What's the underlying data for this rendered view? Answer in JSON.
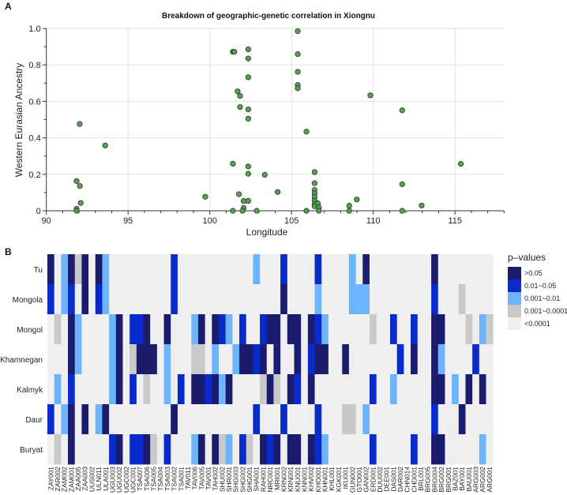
{
  "chart_data": [
    {
      "panel": "A",
      "type": "scatter",
      "title": "Breakdown of geographic-genetic correlation in Xiongnu",
      "xlabel": "Longitude",
      "ylabel": "Western Eurasian Ancestry",
      "xlim": [
        90,
        118
      ],
      "ylim": [
        0,
        1
      ],
      "xticks": [
        90,
        95,
        100,
        105,
        110,
        115
      ],
      "yticks": [
        0,
        0.2,
        0.4,
        0.6,
        0.8,
        1.0
      ],
      "ytick_labels": [
        "0",
        "0.2",
        "0.4",
        "0.6",
        "0.8",
        "1.0"
      ],
      "grid": true,
      "point_color": "#5a9e55",
      "points": [
        [
          92.04,
          0.476
        ],
        [
          93.6,
          0.358
        ],
        [
          91.85,
          0.163
        ],
        [
          92.05,
          0.136
        ],
        [
          92.1,
          0.043
        ],
        [
          91.85,
          0.011
        ],
        [
          91.85,
          0.0
        ],
        [
          99.72,
          0.077
        ],
        [
          101.41,
          0.872
        ],
        [
          101.5,
          0.872
        ],
        [
          102.35,
          0.885
        ],
        [
          102.35,
          0.835
        ],
        [
          102.35,
          0.732
        ],
        [
          101.7,
          0.655
        ],
        [
          101.85,
          0.63
        ],
        [
          101.85,
          0.569
        ],
        [
          102.35,
          0.556
        ],
        [
          102.35,
          0.505
        ],
        [
          101.41,
          0.258
        ],
        [
          102.35,
          0.243
        ],
        [
          102.35,
          0.203
        ],
        [
          103.36,
          0.197
        ],
        [
          104.15,
          0.103
        ],
        [
          101.78,
          0.091
        ],
        [
          102.07,
          0.054
        ],
        [
          102.35,
          0.054
        ],
        [
          102.07,
          0.015
        ],
        [
          102.0,
          0.0
        ],
        [
          101.41,
          0.0
        ],
        [
          102.87,
          0.0
        ],
        [
          105.38,
          0.985
        ],
        [
          105.38,
          0.859
        ],
        [
          105.38,
          0.762
        ],
        [
          105.38,
          0.69
        ],
        [
          105.38,
          0.672
        ],
        [
          105.91,
          0.434
        ],
        [
          109.82,
          0.633
        ],
        [
          111.77,
          0.551
        ],
        [
          115.36,
          0.257
        ],
        [
          111.77,
          0.146
        ],
        [
          111.77,
          0.0
        ],
        [
          112.96,
          0.029
        ],
        [
          108.99,
          0.062
        ],
        [
          108.53,
          0.028
        ],
        [
          108.53,
          0.0
        ],
        [
          105.91,
          0.0
        ],
        [
          106.41,
          0.212
        ],
        [
          106.41,
          0.151
        ],
        [
          106.41,
          0.114
        ],
        [
          106.41,
          0.095
        ],
        [
          106.41,
          0.076
        ],
        [
          106.41,
          0.056
        ],
        [
          106.41,
          0.037
        ],
        [
          106.41,
          0.025
        ],
        [
          106.61,
          0.041
        ],
        [
          106.67,
          0.018
        ],
        [
          106.67,
          0.0
        ]
      ]
    },
    {
      "panel": "B",
      "type": "heatmap",
      "rows": [
        "Tu",
        "Mongola",
        "Mongol",
        "Khamnegan",
        "Kalmyk",
        "Daur",
        "Buryat"
      ],
      "columns": [
        "ZAY001",
        "ZAR002",
        "ZAM002",
        "ZAM001",
        "ZAA005",
        "ZAA003",
        "UUS002",
        "ULN011",
        "ULA001",
        "UGU003",
        "UGU002",
        "UGC002",
        "UGC001",
        "TSA007",
        "TSA006",
        "TSA005",
        "TSA004",
        "TSA003",
        "TSA002",
        "TSA001",
        "TAV011",
        "TAV006",
        "TAV005",
        "TAV001",
        "TAH002",
        "SHU002",
        "SHR001",
        "SHG003",
        "SHG002",
        "SHG001",
        "SHA001",
        "RAH001",
        "NRC001",
        "MRI001",
        "KRN002",
        "KRN001",
        "KNU001",
        "KNN001",
        "KHV002",
        "KHO001",
        "KHN001",
        "KHL001",
        "KGK001",
        "IKU001",
        "GUN002",
        "GTO001",
        "GAN002",
        "ERD001",
        "DUU002",
        "DEE001",
        "DAS001",
        "DAR002",
        "CHN014",
        "CHD001",
        "BRL001",
        "BRG005",
        "BRG004",
        "BRG002",
        "BRG001",
        "BAZ001",
        "BAY001",
        "BAU001",
        "ARG003",
        "ARG002",
        "ARG001"
      ],
      "legend_title": "p–values",
      "levels": [
        {
          "label": "<0.0001",
          "color": "#efefef"
        },
        {
          "label": "0.001~0.0001",
          "color": "#c9c9c9"
        },
        {
          "label": "0.001~0.01",
          "color": "#6cb4fb"
        },
        {
          "label": "0.01~0.05",
          "color": "#0a2bcc"
        },
        {
          "label": ">0.05",
          "color": "#1b1c6d"
        }
      ],
      "legend_order": [
        4,
        3,
        2,
        1,
        0
      ],
      "cells": {
        "Tu": {
          "0": 4,
          "2": 2,
          "3": 4,
          "4": 1,
          "5": 4,
          "7": 4,
          "8": 2,
          "18": 3,
          "30": 2,
          "34": 3,
          "39": 3,
          "44": 2,
          "46": 4,
          "56": 4
        },
        "Mongola": {
          "0": 3,
          "2": 2,
          "3": 3,
          "5": 4,
          "7": 3,
          "8": 2,
          "18": 3,
          "34": 4,
          "39": 2,
          "44": 2,
          "45": 2,
          "46": 2,
          "56": 3,
          "60": 1
        },
        "Mongol": {
          "1": 1,
          "3": 4,
          "4": 2,
          "9": 2,
          "10": 4,
          "12": 3,
          "13": 3,
          "14": 4,
          "17": 4,
          "21": 2,
          "22": 4,
          "24": 4,
          "25": 3,
          "26": 2,
          "28": 3,
          "31": 3,
          "32": 4,
          "33": 4,
          "35": 4,
          "36": 4,
          "38": 4,
          "39": 3,
          "40": 2,
          "47": 1,
          "50": 3,
          "53": 3,
          "56": 4,
          "57": 4,
          "61": 1,
          "63": 2,
          "64": 1
        },
        "Khamnegan": {
          "3": 4,
          "4": 2,
          "9": 2,
          "10": 4,
          "12": 1,
          "13": 4,
          "14": 4,
          "15": 4,
          "17": 2,
          "21": 1,
          "22": 1,
          "24": 2,
          "27": 2,
          "28": 4,
          "29": 4,
          "30": 3,
          "31": 4,
          "33": 4,
          "36": 4,
          "38": 3,
          "39": 4,
          "40": 4,
          "43": 4,
          "51": 3,
          "53": 4,
          "56": 4,
          "57": 2,
          "62": 3
        },
        "Kalmyk": {
          "1": 2,
          "3": 3,
          "9": 2,
          "10": 4,
          "12": 3,
          "14": 1,
          "17": 2,
          "19": 3,
          "21": 4,
          "22": 4,
          "23": 3,
          "24": 4,
          "25": 2,
          "26": 4,
          "31": 1,
          "32": 4,
          "33": 1,
          "35": 4,
          "36": 3,
          "38": 4,
          "47": 3,
          "50": 2,
          "56": 4,
          "57": 4,
          "59": 2,
          "61": 4,
          "63": 4
        },
        "Daur": {
          "0": 3,
          "2": 2,
          "3": 4,
          "5": 4,
          "7": 2,
          "8": 4,
          "18": 4,
          "30": 3,
          "34": 3,
          "39": 3,
          "43": 1,
          "44": 1,
          "46": 2,
          "56": 3,
          "60": 4
        },
        "Buryat": {
          "1": 1,
          "3": 4,
          "9": 3,
          "10": 4,
          "12": 3,
          "13": 3,
          "14": 4,
          "15": 1,
          "17": 3,
          "21": 2,
          "22": 4,
          "24": 4,
          "25": 1,
          "26": 2,
          "28": 3,
          "29": 1,
          "31": 4,
          "32": 3,
          "33": 4,
          "35": 4,
          "36": 4,
          "38": 4,
          "39": 3,
          "40": 2,
          "47": 3,
          "53": 3,
          "56": 4,
          "57": 4,
          "63": 2
        }
      }
    }
  ]
}
